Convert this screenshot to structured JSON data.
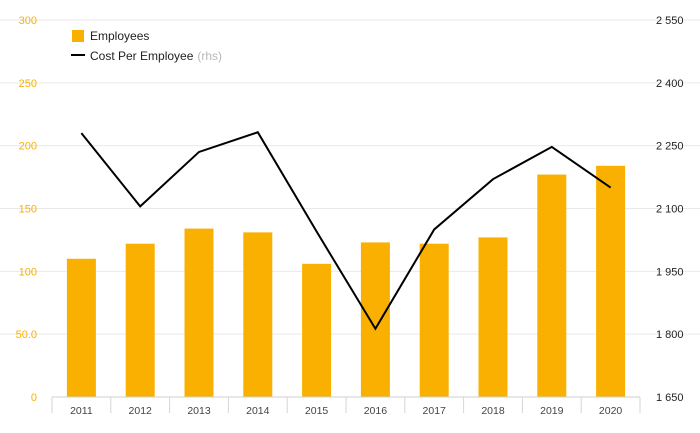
{
  "chart_data": {
    "type": "bar",
    "categories": [
      "2011",
      "2012",
      "2013",
      "2014",
      "2015",
      "2016",
      "2017",
      "2018",
      "2019",
      "2020"
    ],
    "series": [
      {
        "name": "Employees",
        "type": "bar",
        "axis": "left",
        "color": "#F9B000",
        "values": [
          110,
          122,
          134,
          131,
          106,
          123,
          122,
          127,
          177,
          184
        ]
      },
      {
        "name": "Cost Per Employee",
        "type": "line",
        "axis": "right",
        "color": "#000000",
        "values": [
          2280,
          2105,
          2235,
          2282,
          2045,
          1813,
          2050,
          2170,
          2247,
          2150
        ]
      }
    ],
    "legend": {
      "position": "top-left",
      "items": [
        {
          "label": "Employees",
          "suffix": ""
        },
        {
          "label": "Cost Per Employee",
          "suffix": "(rhs)"
        }
      ]
    },
    "y_left": {
      "min": 0,
      "max": 300,
      "ticks": [
        0,
        50,
        100,
        150,
        200,
        250,
        300
      ],
      "tick_labels": [
        "0",
        "50.0",
        "100",
        "150",
        "200",
        "250",
        "300"
      ],
      "color": "#F9B000"
    },
    "y_right": {
      "min": 1650,
      "max": 2550,
      "ticks": [
        1650,
        1800,
        1950,
        2100,
        2250,
        2400,
        2550
      ],
      "tick_labels": [
        "1 650",
        "1 800",
        "1 950",
        "2 100",
        "2 250",
        "2 400",
        "2 550"
      ]
    },
    "grid": true,
    "title": "",
    "xlabel": "",
    "ylabel": ""
  }
}
